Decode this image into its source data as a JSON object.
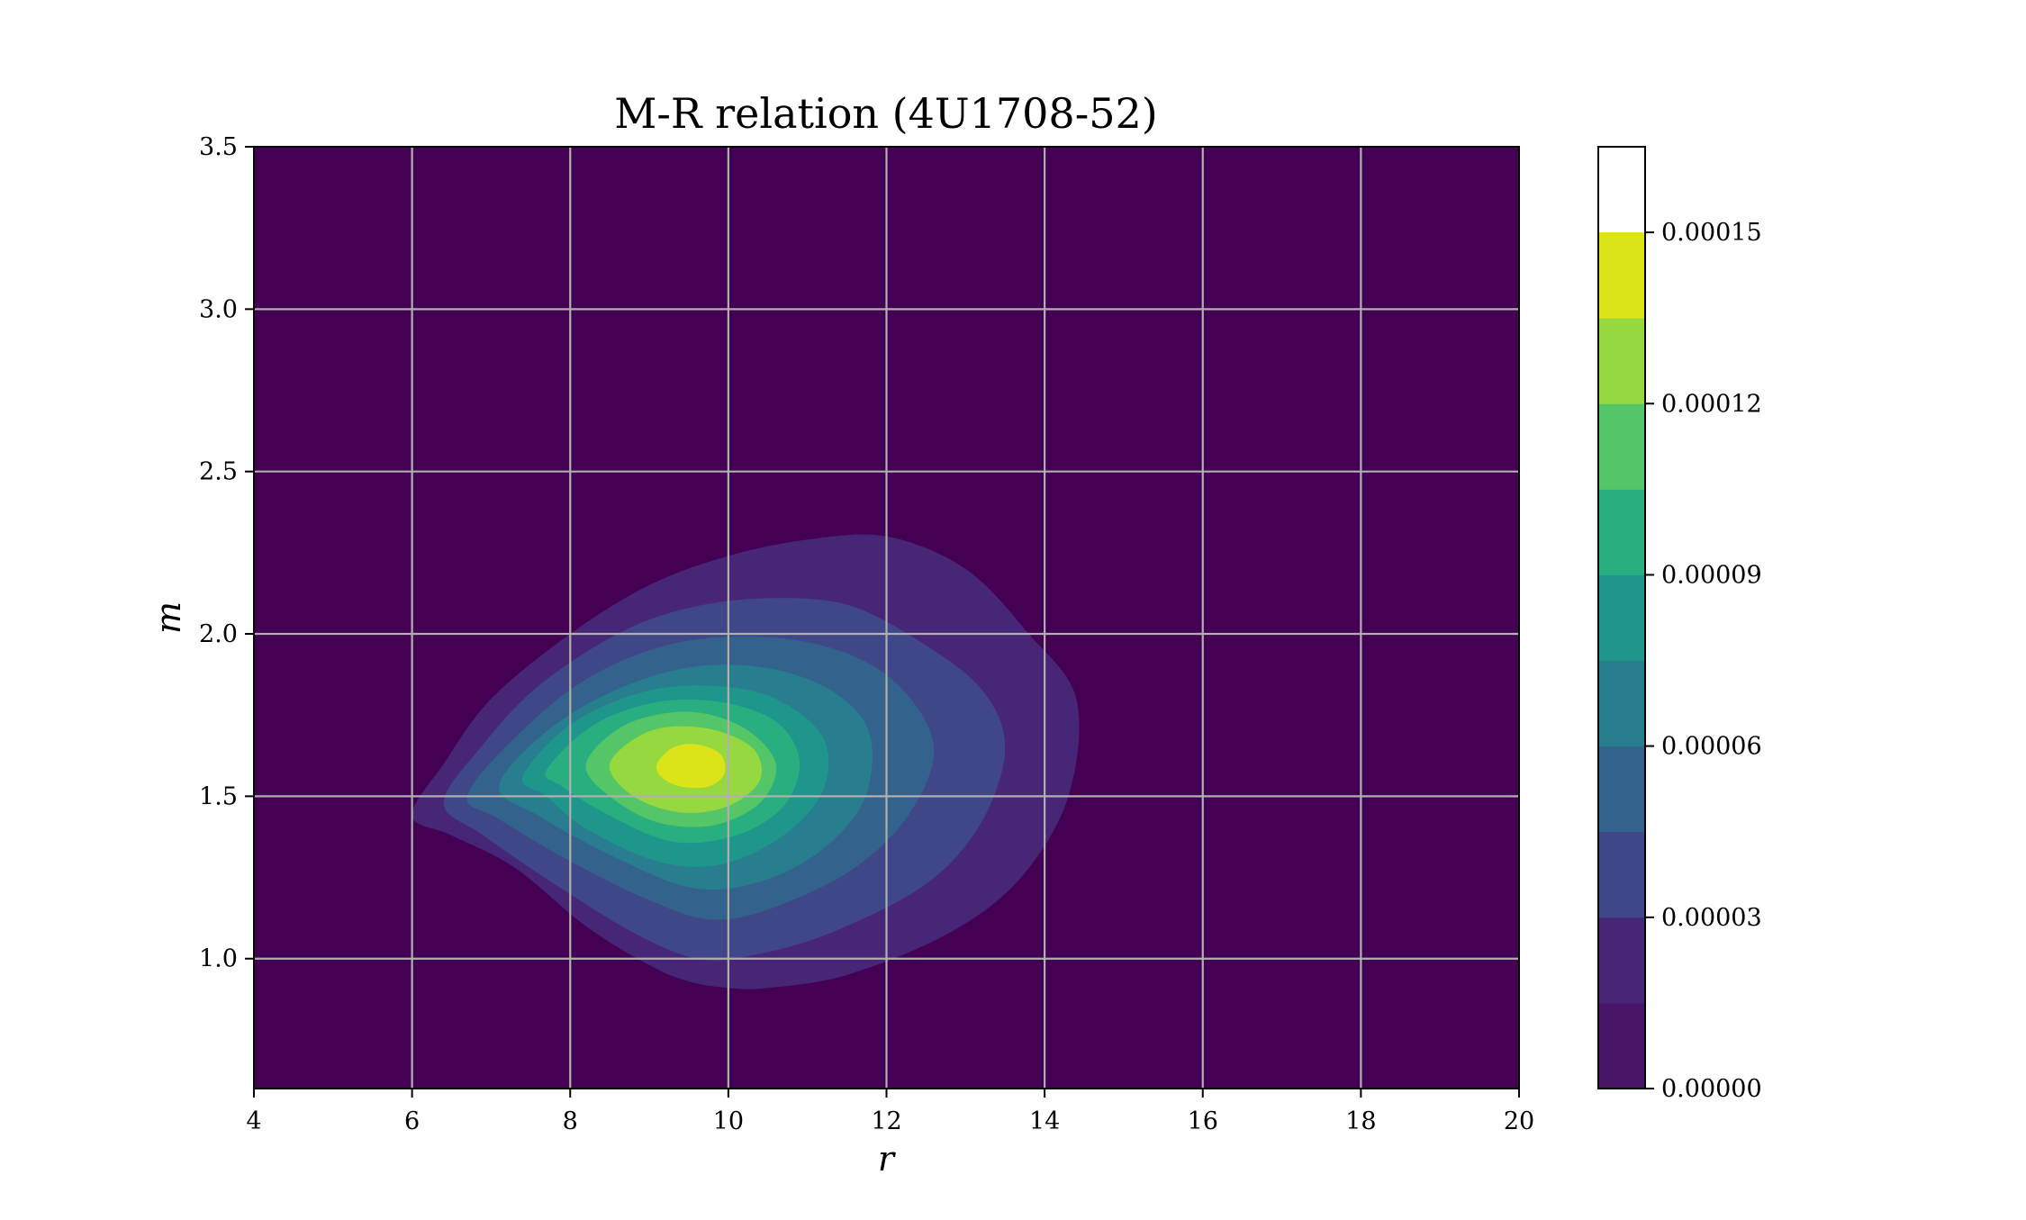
{
  "chart_data": {
    "type": "contour",
    "title": "M-R relation (4U1708-52)",
    "xlabel": "r",
    "ylabel": "m",
    "xlim": [
      4,
      20
    ],
    "ylim": [
      0.6,
      3.5
    ],
    "x_ticks": [
      "4",
      "6",
      "8",
      "10",
      "12",
      "14",
      "16",
      "18",
      "20"
    ],
    "y_ticks": [
      "1.0",
      "1.5",
      "2.0",
      "2.5",
      "3.0",
      "3.5"
    ],
    "grid": true,
    "colorbar": {
      "range": [
        0.0,
        0.000165
      ],
      "levels": [
        0.0,
        1.5e-05,
        3e-05,
        4.5e-05,
        6e-05,
        7.5e-05,
        9e-05,
        0.000105,
        0.00012,
        0.000135,
        0.00015,
        0.000165
      ],
      "tick_values": [
        0.0,
        3e-05,
        6e-05,
        9e-05,
        0.00012,
        0.00015
      ],
      "tick_labels": [
        "0.00000",
        "0.00003",
        "0.00006",
        "0.00009",
        "0.00012",
        "0.00015"
      ],
      "colors": [
        "#481567",
        "#482677",
        "#3f4788",
        "#33638d",
        "#287d8e",
        "#1f968b",
        "#29af7f",
        "#55c667",
        "#95d840",
        "#dce319"
      ]
    },
    "density_peak": {
      "r": 9.5,
      "m": 1.6
    },
    "contour_levels": [
      {
        "level": 1.5e-05,
        "color": "#482677",
        "pts": [
          [
            6.0,
            1.44
          ],
          [
            6.4,
            1.6
          ],
          [
            7.0,
            1.8
          ],
          [
            8.0,
            2.0
          ],
          [
            9.0,
            2.15
          ],
          [
            10.0,
            2.24
          ],
          [
            11.0,
            2.29
          ],
          [
            12.0,
            2.3
          ],
          [
            13.0,
            2.2
          ],
          [
            13.8,
            2.0
          ],
          [
            14.4,
            1.8
          ],
          [
            14.3,
            1.5
          ],
          [
            13.7,
            1.25
          ],
          [
            12.8,
            1.08
          ],
          [
            11.5,
            0.95
          ],
          [
            10.5,
            0.91
          ],
          [
            10.0,
            0.91
          ],
          [
            9.5,
            0.93
          ],
          [
            9.0,
            0.98
          ],
          [
            8.2,
            1.1
          ],
          [
            7.3,
            1.28
          ],
          [
            6.5,
            1.38
          ]
        ]
      },
      {
        "level": 3e-05,
        "color": "#3f4788",
        "pts": [
          [
            6.4,
            1.48
          ],
          [
            6.9,
            1.66
          ],
          [
            7.6,
            1.84
          ],
          [
            8.6,
            2.0
          ],
          [
            9.5,
            2.08
          ],
          [
            10.5,
            2.11
          ],
          [
            11.5,
            2.09
          ],
          [
            12.4,
            1.98
          ],
          [
            13.2,
            1.83
          ],
          [
            13.5,
            1.65
          ],
          [
            13.2,
            1.42
          ],
          [
            12.5,
            1.23
          ],
          [
            11.3,
            1.08
          ],
          [
            10.3,
            1.01
          ],
          [
            9.6,
            1.0
          ],
          [
            8.8,
            1.08
          ],
          [
            7.8,
            1.23
          ],
          [
            6.9,
            1.38
          ]
        ]
      },
      {
        "level": 4.5e-05,
        "color": "#33638d",
        "pts": [
          [
            6.7,
            1.5
          ],
          [
            7.3,
            1.68
          ],
          [
            8.2,
            1.86
          ],
          [
            9.3,
            1.97
          ],
          [
            10.5,
            1.99
          ],
          [
            11.5,
            1.94
          ],
          [
            12.2,
            1.83
          ],
          [
            12.6,
            1.65
          ],
          [
            12.3,
            1.45
          ],
          [
            11.6,
            1.28
          ],
          [
            10.6,
            1.16
          ],
          [
            9.8,
            1.12
          ],
          [
            9.0,
            1.18
          ],
          [
            8.0,
            1.3
          ],
          [
            7.1,
            1.43
          ]
        ]
      },
      {
        "level": 6e-05,
        "color": "#287d8e",
        "pts": [
          [
            7.1,
            1.53
          ],
          [
            7.7,
            1.7
          ],
          [
            8.6,
            1.83
          ],
          [
            9.6,
            1.9
          ],
          [
            10.6,
            1.89
          ],
          [
            11.4,
            1.81
          ],
          [
            11.8,
            1.68
          ],
          [
            11.7,
            1.48
          ],
          [
            11.1,
            1.32
          ],
          [
            10.3,
            1.23
          ],
          [
            9.5,
            1.22
          ],
          [
            8.5,
            1.32
          ],
          [
            7.6,
            1.44
          ]
        ]
      },
      {
        "level": 7.5e-05,
        "color": "#1f968b",
        "pts": [
          [
            7.4,
            1.56
          ],
          [
            8.0,
            1.72
          ],
          [
            8.9,
            1.82
          ],
          [
            9.8,
            1.84
          ],
          [
            10.6,
            1.8
          ],
          [
            11.2,
            1.68
          ],
          [
            11.2,
            1.52
          ],
          [
            10.7,
            1.38
          ],
          [
            9.9,
            1.29
          ],
          [
            9.1,
            1.3
          ],
          [
            8.2,
            1.4
          ],
          [
            7.7,
            1.5
          ]
        ]
      },
      {
        "level": 9e-05,
        "color": "#29af7f",
        "pts": [
          [
            7.7,
            1.58
          ],
          [
            8.3,
            1.72
          ],
          [
            9.1,
            1.79
          ],
          [
            9.9,
            1.79
          ],
          [
            10.6,
            1.73
          ],
          [
            10.9,
            1.61
          ],
          [
            10.7,
            1.47
          ],
          [
            10.1,
            1.38
          ],
          [
            9.3,
            1.36
          ],
          [
            8.5,
            1.44
          ],
          [
            7.9,
            1.53
          ]
        ]
      },
      {
        "level": 0.000105,
        "color": "#55c667",
        "pts": [
          [
            8.2,
            1.6
          ],
          [
            8.7,
            1.72
          ],
          [
            9.5,
            1.76
          ],
          [
            10.2,
            1.71
          ],
          [
            10.6,
            1.6
          ],
          [
            10.4,
            1.48
          ],
          [
            9.8,
            1.41
          ],
          [
            9.1,
            1.42
          ],
          [
            8.5,
            1.5
          ]
        ]
      },
      {
        "level": 0.00012,
        "color": "#95d840",
        "pts": [
          [
            8.5,
            1.6
          ],
          [
            9.0,
            1.7
          ],
          [
            9.7,
            1.71
          ],
          [
            10.3,
            1.65
          ],
          [
            10.4,
            1.55
          ],
          [
            10.0,
            1.47
          ],
          [
            9.4,
            1.45
          ],
          [
            8.8,
            1.5
          ]
        ]
      },
      {
        "level": 0.000135,
        "color": "#dce319",
        "pts": [
          [
            9.1,
            1.6
          ],
          [
            9.3,
            1.65
          ],
          [
            9.6,
            1.66
          ],
          [
            9.9,
            1.63
          ],
          [
            9.95,
            1.57
          ],
          [
            9.75,
            1.53
          ],
          [
            9.4,
            1.53
          ],
          [
            9.15,
            1.56
          ]
        ]
      }
    ]
  }
}
